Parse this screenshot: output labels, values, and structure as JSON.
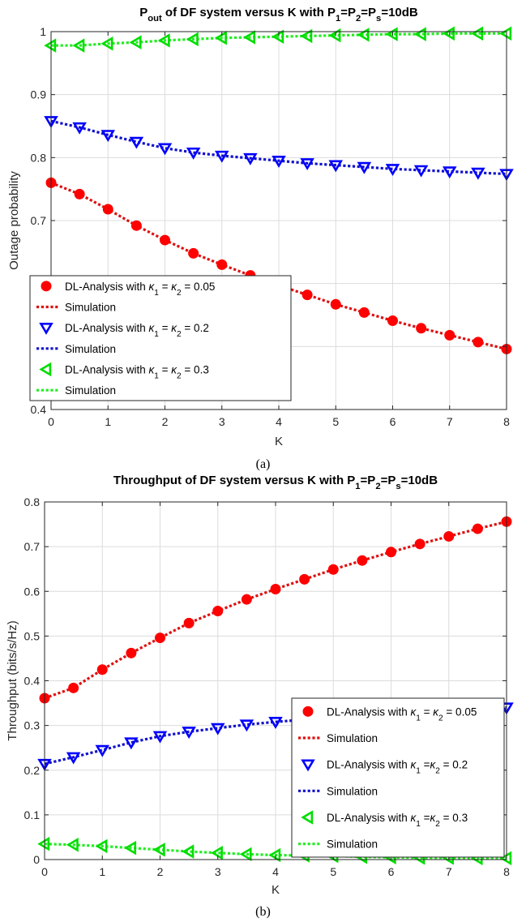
{
  "chart_data": [
    {
      "type": "line",
      "title_parts": [
        "P",
        "out",
        " of DF system versus K with P",
        "1",
        "=P",
        "2",
        "=P",
        "s",
        "=10dB"
      ],
      "xlabel": "K",
      "ylabel": "Outage probability",
      "caption": "(a)",
      "xlim": [
        0,
        8
      ],
      "ylim": [
        0.4,
        1
      ],
      "xticks": [
        0,
        1,
        2,
        3,
        4,
        5,
        6,
        7,
        8
      ],
      "xtick_labels": [
        "0",
        "1",
        "2",
        "3",
        "4",
        "5",
        "6",
        "7",
        "8"
      ],
      "yticks": [
        0.4,
        0.5,
        0.6,
        0.7,
        0.8,
        0.9,
        1
      ],
      "ytick_labels": [
        "0.4",
        "0.5",
        "0.6",
        "0.7",
        "0.8",
        "0.9",
        "1"
      ],
      "grid": true,
      "legend_position": "bottom-left",
      "x": [
        0,
        0.5,
        1,
        1.5,
        2,
        2.5,
        3,
        3.5,
        4,
        4.5,
        5,
        5.5,
        6,
        6.5,
        7,
        7.5,
        8
      ],
      "series": [
        {
          "legend_label": [
            "DL-Analysis with ",
            "κ",
            "1",
            " = ",
            "κ",
            "2",
            " = 0.05"
          ],
          "sim_label": "Simulation",
          "marker": "circle",
          "color": "#ff0000",
          "sim_color": "#dd1111",
          "values": [
            0.76,
            0.742,
            0.718,
            0.692,
            0.669,
            0.648,
            0.63,
            0.613,
            0.597,
            0.582,
            0.567,
            0.554,
            0.541,
            0.529,
            0.518,
            0.507,
            0.496
          ]
        },
        {
          "legend_label": [
            "DL-Analysis with ",
            "κ",
            "1",
            " = ",
            "κ",
            "2",
            " = 0.2"
          ],
          "sim_label": "Simulation",
          "marker": "triangle-down",
          "color": "#0000ff",
          "sim_color": "#1111cc",
          "values": [
            0.858,
            0.848,
            0.836,
            0.825,
            0.815,
            0.808,
            0.803,
            0.799,
            0.795,
            0.791,
            0.788,
            0.785,
            0.782,
            0.78,
            0.778,
            0.776,
            0.774
          ]
        },
        {
          "legend_label": [
            "DL-Analysis with ",
            "κ",
            "1",
            " = ",
            "κ",
            "2",
            " = 0.3"
          ],
          "sim_label": "Simulation",
          "marker": "triangle-left",
          "color": "#00dd00",
          "sim_color": "#22ee22",
          "values": [
            0.978,
            0.978,
            0.981,
            0.983,
            0.986,
            0.988,
            0.99,
            0.991,
            0.992,
            0.993,
            0.994,
            0.995,
            0.996,
            0.996,
            0.997,
            0.997,
            0.997
          ]
        }
      ]
    },
    {
      "type": "line",
      "title_parts": [
        "Throughput of DF system versus K with P",
        "1",
        "=P",
        "2",
        "=P",
        "s",
        "=10dB"
      ],
      "xlabel": "K",
      "ylabel": "Throughput (bits/s/Hz)",
      "caption": "(b)",
      "xlim": [
        0,
        8
      ],
      "ylim": [
        0,
        0.8
      ],
      "xticks": [
        0,
        1,
        2,
        3,
        4,
        5,
        6,
        7,
        8
      ],
      "xtick_labels": [
        "0",
        "1",
        "2",
        "3",
        "4",
        "5",
        "6",
        "7",
        "8"
      ],
      "yticks": [
        0,
        0.1,
        0.2,
        0.3,
        0.4,
        0.5,
        0.6,
        0.7,
        0.8
      ],
      "ytick_labels": [
        "0",
        "0.1",
        "0.2",
        "0.3",
        "0.4",
        "0.5",
        "0.6",
        "0.7",
        "0.8"
      ],
      "grid": true,
      "legend_position": "bottom-right",
      "x": [
        0,
        0.5,
        1,
        1.5,
        2,
        2.5,
        3,
        3.5,
        4,
        4.5,
        5,
        5.5,
        6,
        6.5,
        7,
        7.5,
        8
      ],
      "series": [
        {
          "legend_label": [
            "DL-Analysis with ",
            "κ",
            "1",
            " = ",
            "κ",
            "2",
            " = 0.05"
          ],
          "sim_label": "Simulation",
          "marker": "circle",
          "color": "#ff0000",
          "sim_color": "#dd1111",
          "values": [
            0.361,
            0.384,
            0.425,
            0.462,
            0.496,
            0.529,
            0.556,
            0.582,
            0.605,
            0.627,
            0.649,
            0.669,
            0.688,
            0.706,
            0.723,
            0.74,
            0.756
          ]
        },
        {
          "legend_label": [
            "DL-Analysis with ",
            "κ",
            "1",
            " =",
            "κ",
            "2",
            " = 0.2"
          ],
          "sim_label": "Simulation",
          "marker": "triangle-down",
          "color": "#0000ff",
          "sim_color": "#1111cc",
          "values": [
            0.214,
            0.229,
            0.245,
            0.262,
            0.276,
            0.286,
            0.294,
            0.302,
            0.308,
            0.313,
            0.317,
            0.322,
            0.327,
            0.331,
            0.334,
            0.337,
            0.34
          ]
        },
        {
          "legend_label": [
            "DL-Analysis with ",
            "κ",
            "1",
            " =",
            "κ",
            "2",
            " = 0.3"
          ],
          "sim_label": "Simulation",
          "marker": "triangle-left",
          "color": "#00dd00",
          "sim_color": "#22ee22",
          "values": [
            0.035,
            0.033,
            0.03,
            0.026,
            0.022,
            0.018,
            0.015,
            0.012,
            0.01,
            0.009,
            0.008,
            0.006,
            0.005,
            0.004,
            0.004,
            0.003,
            0.003
          ]
        }
      ]
    }
  ]
}
